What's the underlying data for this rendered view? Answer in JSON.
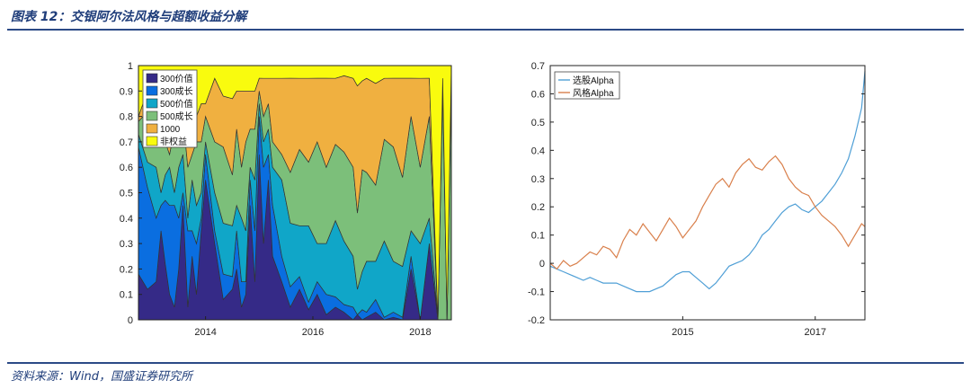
{
  "header": {
    "title": "图表 12：交银阿尔法风格与超额收益分解"
  },
  "footer": {
    "source": "资料来源：Wind，国盛证券研究所"
  },
  "colors": {
    "header_blue": "#1f3d7a",
    "s300value": "#352a87",
    "s300growth": "#0a6ee0",
    "s500value": "#10a6c8",
    "s500growth": "#7cbf7a",
    "s1000": "#f0b040",
    "nonequity": "#f9fb0e",
    "alpha_select": "#4f9fd6",
    "alpha_style": "#d9804c"
  },
  "chart_data": [
    {
      "type": "area",
      "stacked": true,
      "title": "",
      "xlabel": "",
      "ylabel": "",
      "ylim": [
        0,
        1
      ],
      "xlim": [
        2012.75,
        2018.58
      ],
      "xticks": [
        "2014",
        "2016",
        "2018"
      ],
      "yticks": [
        "0",
        "0.1",
        "0.2",
        "0.3",
        "0.4",
        "0.5",
        "0.6",
        "0.7",
        "0.8",
        "0.9",
        "1"
      ],
      "legend_position": "top-left",
      "x": [
        2012.75,
        2012.92,
        2013.08,
        2013.17,
        2013.25,
        2013.33,
        2013.42,
        2013.5,
        2013.58,
        2013.67,
        2013.75,
        2013.83,
        2013.92,
        2014.0,
        2014.17,
        2014.33,
        2014.5,
        2014.58,
        2014.67,
        2014.75,
        2014.83,
        2014.92,
        2015.0,
        2015.08,
        2015.17,
        2015.25,
        2015.42,
        2015.58,
        2015.75,
        2015.92,
        2016.08,
        2016.25,
        2016.42,
        2016.58,
        2016.75,
        2016.83,
        2016.92,
        2017.0,
        2017.17,
        2017.33,
        2017.5,
        2017.67,
        2017.83,
        2018.0,
        2018.17,
        2018.33,
        2018.42,
        2018.5,
        2018.58
      ],
      "series": [
        {
          "name": "300价值",
          "values": [
            0.18,
            0.12,
            0.15,
            0.35,
            0.22,
            0.1,
            0.05,
            0.2,
            0.45,
            0.05,
            0.25,
            0.1,
            0.35,
            0.55,
            0.3,
            0.08,
            0.12,
            0.2,
            0.05,
            0.1,
            0.45,
            0.15,
            0.65,
            0.3,
            0.55,
            0.25,
            0.15,
            0.05,
            0.12,
            0.04,
            0.1,
            0.02,
            0.05,
            0.03,
            0.0,
            0.02,
            0.0,
            0.01,
            0.03,
            0.0,
            0.01,
            0.0,
            0.2,
            0.0,
            0.3,
            0.0,
            0.0,
            0.0,
            0.0
          ]
        },
        {
          "name": "300成长",
          "values": [
            0.5,
            0.4,
            0.25,
            0.1,
            0.25,
            0.35,
            0.4,
            0.2,
            0.05,
            0.3,
            0.1,
            0.2,
            0.05,
            0.1,
            0.05,
            0.1,
            0.05,
            0.15,
            0.1,
            0.05,
            0.1,
            0.2,
            0.15,
            0.3,
            0.1,
            0.2,
            0.1,
            0.08,
            0.05,
            0.03,
            0.05,
            0.08,
            0.04,
            0.03,
            0.05,
            0.0,
            0.04,
            0.02,
            0.05,
            0.01,
            0.02,
            0.01,
            0.05,
            0.0,
            0.0,
            0.0,
            0.0,
            0.0,
            0.0
          ]
        },
        {
          "name": "500价值",
          "values": [
            0.05,
            0.1,
            0.2,
            0.05,
            0.1,
            0.15,
            0.05,
            0.2,
            0.15,
            0.05,
            0.2,
            0.15,
            0.1,
            0.05,
            0.15,
            0.2,
            0.2,
            0.1,
            0.25,
            0.2,
            0.05,
            0.2,
            0.05,
            0.1,
            0.1,
            0.15,
            0.3,
            0.25,
            0.2,
            0.3,
            0.15,
            0.2,
            0.3,
            0.25,
            0.2,
            0.1,
            0.15,
            0.2,
            0.15,
            0.3,
            0.2,
            0.2,
            0.1,
            0.3,
            0.1,
            0.0,
            0.0,
            0.0,
            0.0
          ]
        },
        {
          "name": "500成长",
          "values": [
            0.05,
            0.2,
            0.1,
            0.2,
            0.13,
            0.05,
            0.25,
            0.1,
            0.15,
            0.2,
            0.1,
            0.25,
            0.2,
            0.1,
            0.2,
            0.3,
            0.2,
            0.3,
            0.2,
            0.35,
            0.15,
            0.2,
            0.05,
            0.1,
            0.1,
            0.1,
            0.1,
            0.2,
            0.3,
            0.25,
            0.4,
            0.3,
            0.3,
            0.35,
            0.35,
            0.3,
            0.4,
            0.35,
            0.3,
            0.4,
            0.45,
            0.35,
            0.45,
            0.3,
            0.4,
            0.0,
            0.9,
            0.0,
            0.95
          ]
        },
        {
          "name": "1000",
          "values": [
            0.02,
            0.08,
            0.1,
            0.1,
            0.15,
            0.2,
            0.1,
            0.1,
            0.05,
            0.25,
            0.2,
            0.1,
            0.15,
            0.05,
            0.25,
            0.2,
            0.3,
            0.15,
            0.3,
            0.2,
            0.15,
            0.15,
            0.05,
            0.15,
            0.1,
            0.25,
            0.3,
            0.37,
            0.28,
            0.33,
            0.25,
            0.35,
            0.26,
            0.3,
            0.35,
            0.5,
            0.35,
            0.37,
            0.4,
            0.24,
            0.27,
            0.39,
            0.15,
            0.35,
            0.15,
            0.0,
            0.05,
            0.0,
            0.05
          ]
        },
        {
          "name": "非权益",
          "values": [
            0.2,
            0.1,
            0.2,
            0.2,
            0.15,
            0.15,
            0.15,
            0.2,
            0.15,
            0.15,
            0.15,
            0.2,
            0.15,
            0.15,
            0.05,
            0.12,
            0.13,
            0.1,
            0.1,
            0.1,
            0.1,
            0.1,
            0.05,
            0.05,
            0.05,
            0.05,
            0.05,
            0.05,
            0.05,
            0.05,
            0.05,
            0.05,
            0.05,
            0.04,
            0.05,
            0.08,
            0.06,
            0.05,
            0.07,
            0.05,
            0.05,
            0.05,
            0.05,
            0.05,
            0.05,
            1.0,
            0.05,
            1.0,
            0.0
          ]
        }
      ]
    },
    {
      "type": "line",
      "title": "",
      "xlabel": "",
      "ylabel": "",
      "ylim": [
        -0.2,
        0.7
      ],
      "xlim": [
        2013.0,
        2017.75
      ],
      "xticks": [
        "2015",
        "2017"
      ],
      "yticks": [
        "-0.2",
        "-0.1",
        "0",
        "0.1",
        "0.2",
        "0.3",
        "0.4",
        "0.5",
        "0.6",
        "0.7"
      ],
      "legend_position": "top-left",
      "series": [
        {
          "name": "选股Alpha",
          "x": [
            2013.0,
            2013.1,
            2013.2,
            2013.3,
            2013.4,
            2013.5,
            2013.6,
            2013.7,
            2013.8,
            2013.9,
            2014.0,
            2014.1,
            2014.2,
            2014.3,
            2014.4,
            2014.5,
            2014.6,
            2014.7,
            2014.8,
            2014.9,
            2015.0,
            2015.1,
            2015.2,
            2015.3,
            2015.4,
            2015.5,
            2015.6,
            2015.7,
            2015.8,
            2015.9,
            2016.0,
            2016.1,
            2016.2,
            2016.3,
            2016.4,
            2016.5,
            2016.6,
            2016.7,
            2016.8,
            2016.9,
            2017.0,
            2017.1,
            2017.2,
            2017.3,
            2017.4,
            2017.5,
            2017.6,
            2017.7,
            2017.75
          ],
          "values": [
            -0.01,
            -0.02,
            -0.03,
            -0.04,
            -0.05,
            -0.06,
            -0.05,
            -0.06,
            -0.07,
            -0.07,
            -0.07,
            -0.08,
            -0.09,
            -0.1,
            -0.1,
            -0.1,
            -0.09,
            -0.08,
            -0.06,
            -0.04,
            -0.03,
            -0.03,
            -0.05,
            -0.07,
            -0.09,
            -0.07,
            -0.04,
            -0.01,
            0.0,
            0.01,
            0.03,
            0.06,
            0.1,
            0.12,
            0.15,
            0.18,
            0.2,
            0.21,
            0.19,
            0.18,
            0.2,
            0.22,
            0.25,
            0.28,
            0.32,
            0.37,
            0.45,
            0.55,
            0.68
          ]
        },
        {
          "name": "风格Alpha",
          "x": [
            2013.0,
            2013.1,
            2013.2,
            2013.3,
            2013.4,
            2013.5,
            2013.6,
            2013.7,
            2013.8,
            2013.9,
            2014.0,
            2014.1,
            2014.2,
            2014.3,
            2014.4,
            2014.5,
            2014.6,
            2014.7,
            2014.8,
            2014.9,
            2015.0,
            2015.1,
            2015.2,
            2015.3,
            2015.4,
            2015.5,
            2015.6,
            2015.7,
            2015.8,
            2015.9,
            2016.0,
            2016.1,
            2016.2,
            2016.3,
            2016.4,
            2016.5,
            2016.6,
            2016.7,
            2016.8,
            2016.9,
            2017.0,
            2017.1,
            2017.2,
            2017.3,
            2017.4,
            2017.5,
            2017.6,
            2017.7,
            2017.75
          ],
          "values": [
            0.0,
            -0.02,
            0.01,
            -0.01,
            0.0,
            0.02,
            0.04,
            0.03,
            0.06,
            0.05,
            0.02,
            0.08,
            0.12,
            0.1,
            0.14,
            0.11,
            0.08,
            0.12,
            0.16,
            0.13,
            0.09,
            0.12,
            0.15,
            0.2,
            0.24,
            0.28,
            0.3,
            0.27,
            0.32,
            0.35,
            0.37,
            0.34,
            0.33,
            0.36,
            0.38,
            0.35,
            0.3,
            0.27,
            0.25,
            0.24,
            0.2,
            0.17,
            0.15,
            0.13,
            0.1,
            0.06,
            0.1,
            0.14,
            0.13
          ]
        }
      ]
    }
  ]
}
